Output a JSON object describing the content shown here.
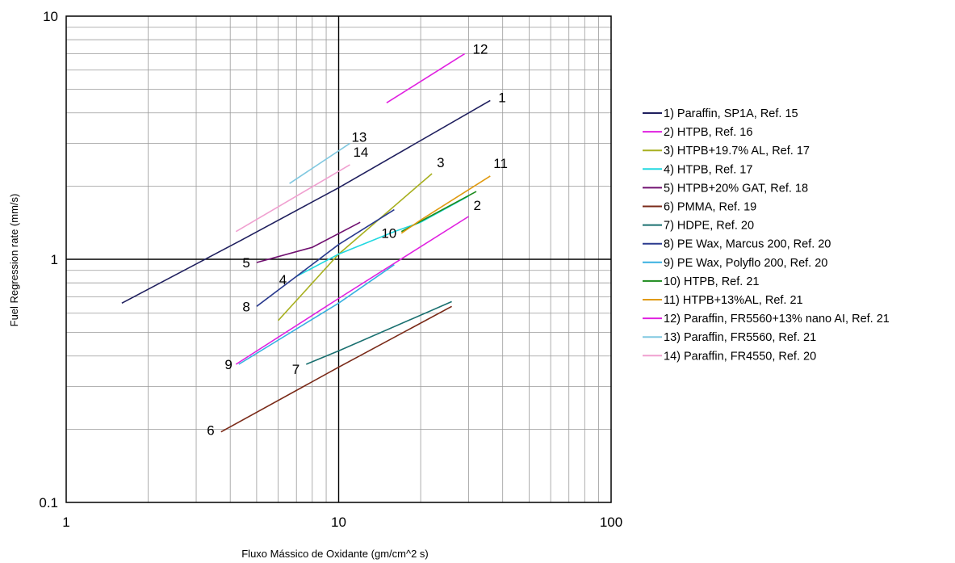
{
  "chart_data": {
    "type": "line",
    "title": "",
    "xlabel": "Fluxo Mássico de Oxidante (gm/cm^2 s)",
    "ylabel": "Fuel Regression rate (mm/s)",
    "xscale": "log",
    "yscale": "log",
    "xlim": [
      1,
      100
    ],
    "ylim": [
      0.1,
      10
    ],
    "x_ticks": [
      "1",
      "10",
      "100"
    ],
    "y_ticks": [
      "0.1",
      "1",
      "10"
    ],
    "grid": true,
    "legend_position": "right",
    "series": [
      {
        "name": "1) Paraffin, SP1A, Ref. 15",
        "label": "1",
        "color": "#1f1f5e",
        "points": [
          [
            1.6,
            0.66
          ],
          [
            4.4,
            1.2
          ],
          [
            10,
            1.97
          ],
          [
            36,
            4.5
          ]
        ]
      },
      {
        "name": "2) HTPB, Ref. 16",
        "label": "2",
        "color": "#e020e0",
        "points": [
          [
            4.2,
            0.37
          ],
          [
            10,
            0.69
          ],
          [
            30,
            1.5
          ]
        ]
      },
      {
        "name": "3) HTPB+19.7% AL, Ref. 17",
        "label": "3",
        "color": "#a8b020",
        "points": [
          [
            6,
            0.56
          ],
          [
            10,
            1.05
          ],
          [
            22,
            2.25
          ]
        ]
      },
      {
        "name": "4) HTPB, Ref. 17",
        "label": "4",
        "color": "#22d8e0",
        "points": [
          [
            7,
            0.85
          ],
          [
            10,
            1.05
          ],
          [
            16,
            1.3
          ],
          [
            20,
            1.42
          ],
          [
            30,
            1.82
          ]
        ]
      },
      {
        "name": "5) HTPB+20% GAT, Ref. 18",
        "label": "5",
        "color": "#701070",
        "points": [
          [
            5,
            0.97
          ],
          [
            8,
            1.12
          ],
          [
            12,
            1.42
          ]
        ]
      },
      {
        "name": "6) PMMA, Ref. 19",
        "label": "6",
        "color": "#7a2a18",
        "points": [
          [
            3.7,
            0.195
          ],
          [
            10,
            0.36
          ],
          [
            26,
            0.64
          ]
        ]
      },
      {
        "name": "7) HDPE, Ref. 20",
        "label": "7",
        "color": "#1a7070",
        "points": [
          [
            7.6,
            0.37
          ],
          [
            10,
            0.42
          ],
          [
            26,
            0.67
          ]
        ]
      },
      {
        "name": "8) PE Wax, Marcus 200, Ref. 20",
        "label": "8",
        "color": "#2a3a8e",
        "points": [
          [
            5,
            0.64
          ],
          [
            10,
            1.15
          ],
          [
            16,
            1.6
          ]
        ]
      },
      {
        "name": "9) PE Wax, Polyflo 200, Ref. 20",
        "label": "9",
        "color": "#38b0e0",
        "points": [
          [
            4.3,
            0.37
          ],
          [
            10,
            0.66
          ],
          [
            16,
            0.95
          ]
        ]
      },
      {
        "name": "10) HTPB, Ref. 21",
        "label": "10",
        "color": "#1a8a1a",
        "points": [
          [
            17,
            1.3
          ],
          [
            32,
            1.9
          ]
        ]
      },
      {
        "name": "11) HTPB+13%AL, Ref. 21",
        "label": "11",
        "color": "#e09a10",
        "points": [
          [
            17,
            1.28
          ],
          [
            20,
            1.45
          ],
          [
            36,
            2.2
          ]
        ]
      },
      {
        "name": "12) Paraffin, FR5560+13% nano AI, Ref. 21",
        "label": "12",
        "color": "#e020e0",
        "points": [
          [
            15,
            4.4
          ],
          [
            29,
            7.0
          ]
        ]
      },
      {
        "name": "13) Paraffin, FR5560, Ref. 21",
        "label": "13",
        "color": "#80c8e0",
        "points": [
          [
            6.6,
            2.05
          ],
          [
            11,
            3.0
          ]
        ]
      },
      {
        "name": "14) Paraffin, FR4550, Ref. 20",
        "label": "14",
        "color": "#f0a0d0",
        "points": [
          [
            4.2,
            1.3
          ],
          [
            11,
            2.45
          ]
        ]
      }
    ]
  }
}
